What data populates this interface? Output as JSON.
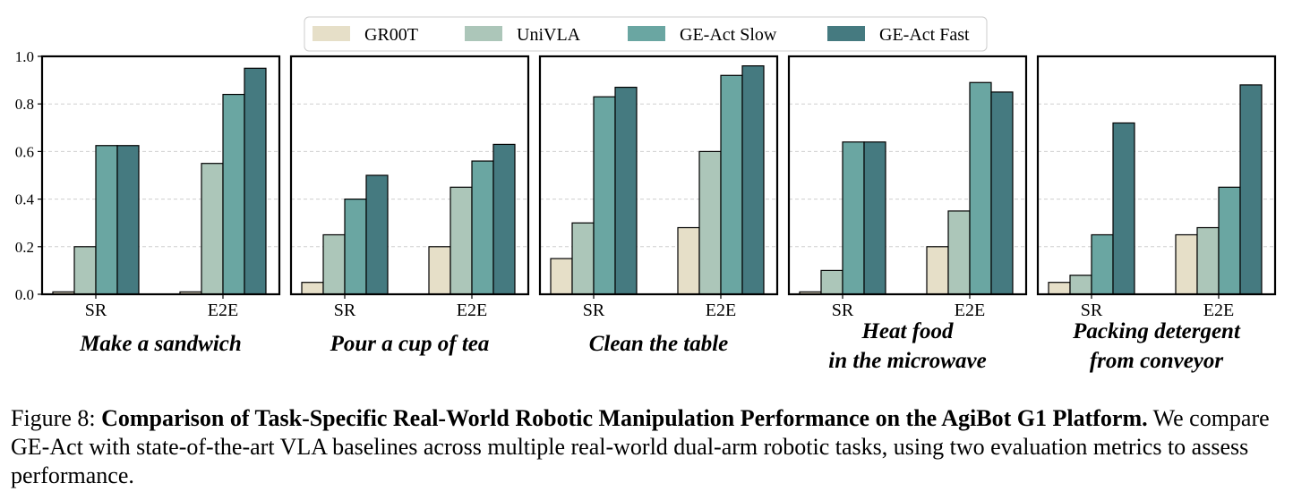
{
  "chart_data": {
    "type": "bar",
    "ylim": [
      0,
      1.0
    ],
    "yticks": [
      "0.0",
      "0.2",
      "0.4",
      "0.6",
      "0.8",
      "1.0"
    ],
    "categories": [
      "SR",
      "E2E"
    ],
    "legend": [
      {
        "name": "GR00T",
        "color": "#e6dfc8"
      },
      {
        "name": "UniVLA",
        "color": "#acc6b9"
      },
      {
        "name": "GE-Act Slow",
        "color": "#6aa6a2"
      },
      {
        "name": "GE-Act Fast",
        "color": "#457a80"
      }
    ],
    "panels": [
      {
        "title_lines": [
          "Make a sandwich"
        ],
        "series": [
          [
            0.01,
            0.01
          ],
          [
            0.2,
            0.55
          ],
          [
            0.625,
            0.84
          ],
          [
            0.625,
            0.95
          ]
        ]
      },
      {
        "title_lines": [
          "Pour a cup of tea"
        ],
        "series": [
          [
            0.05,
            0.2
          ],
          [
            0.25,
            0.45
          ],
          [
            0.4,
            0.56
          ],
          [
            0.5,
            0.63
          ]
        ]
      },
      {
        "title_lines": [
          "Clean the table"
        ],
        "series": [
          [
            0.15,
            0.28
          ],
          [
            0.3,
            0.6
          ],
          [
            0.83,
            0.92
          ],
          [
            0.87,
            0.96
          ]
        ]
      },
      {
        "title_lines": [
          "Heat food",
          "in the microwave"
        ],
        "series": [
          [
            0.01,
            0.2
          ],
          [
            0.1,
            0.35
          ],
          [
            0.64,
            0.89
          ],
          [
            0.64,
            0.85
          ]
        ]
      },
      {
        "title_lines": [
          "Packing detergent",
          "from conveyor"
        ],
        "series": [
          [
            0.05,
            0.25
          ],
          [
            0.08,
            0.28
          ],
          [
            0.25,
            0.45
          ],
          [
            0.72,
            0.88
          ]
        ]
      }
    ]
  },
  "caption": {
    "label": "Figure 8: ",
    "title": "Comparison of Task-Specific Real-World Robotic Manipulation Performance on the AgiBot G1 Platform.",
    "body": " We compare GE-Act with state-of-the-art VLA baselines across multiple real-world dual-arm robotic tasks, using two evaluation metrics to assess performance."
  }
}
